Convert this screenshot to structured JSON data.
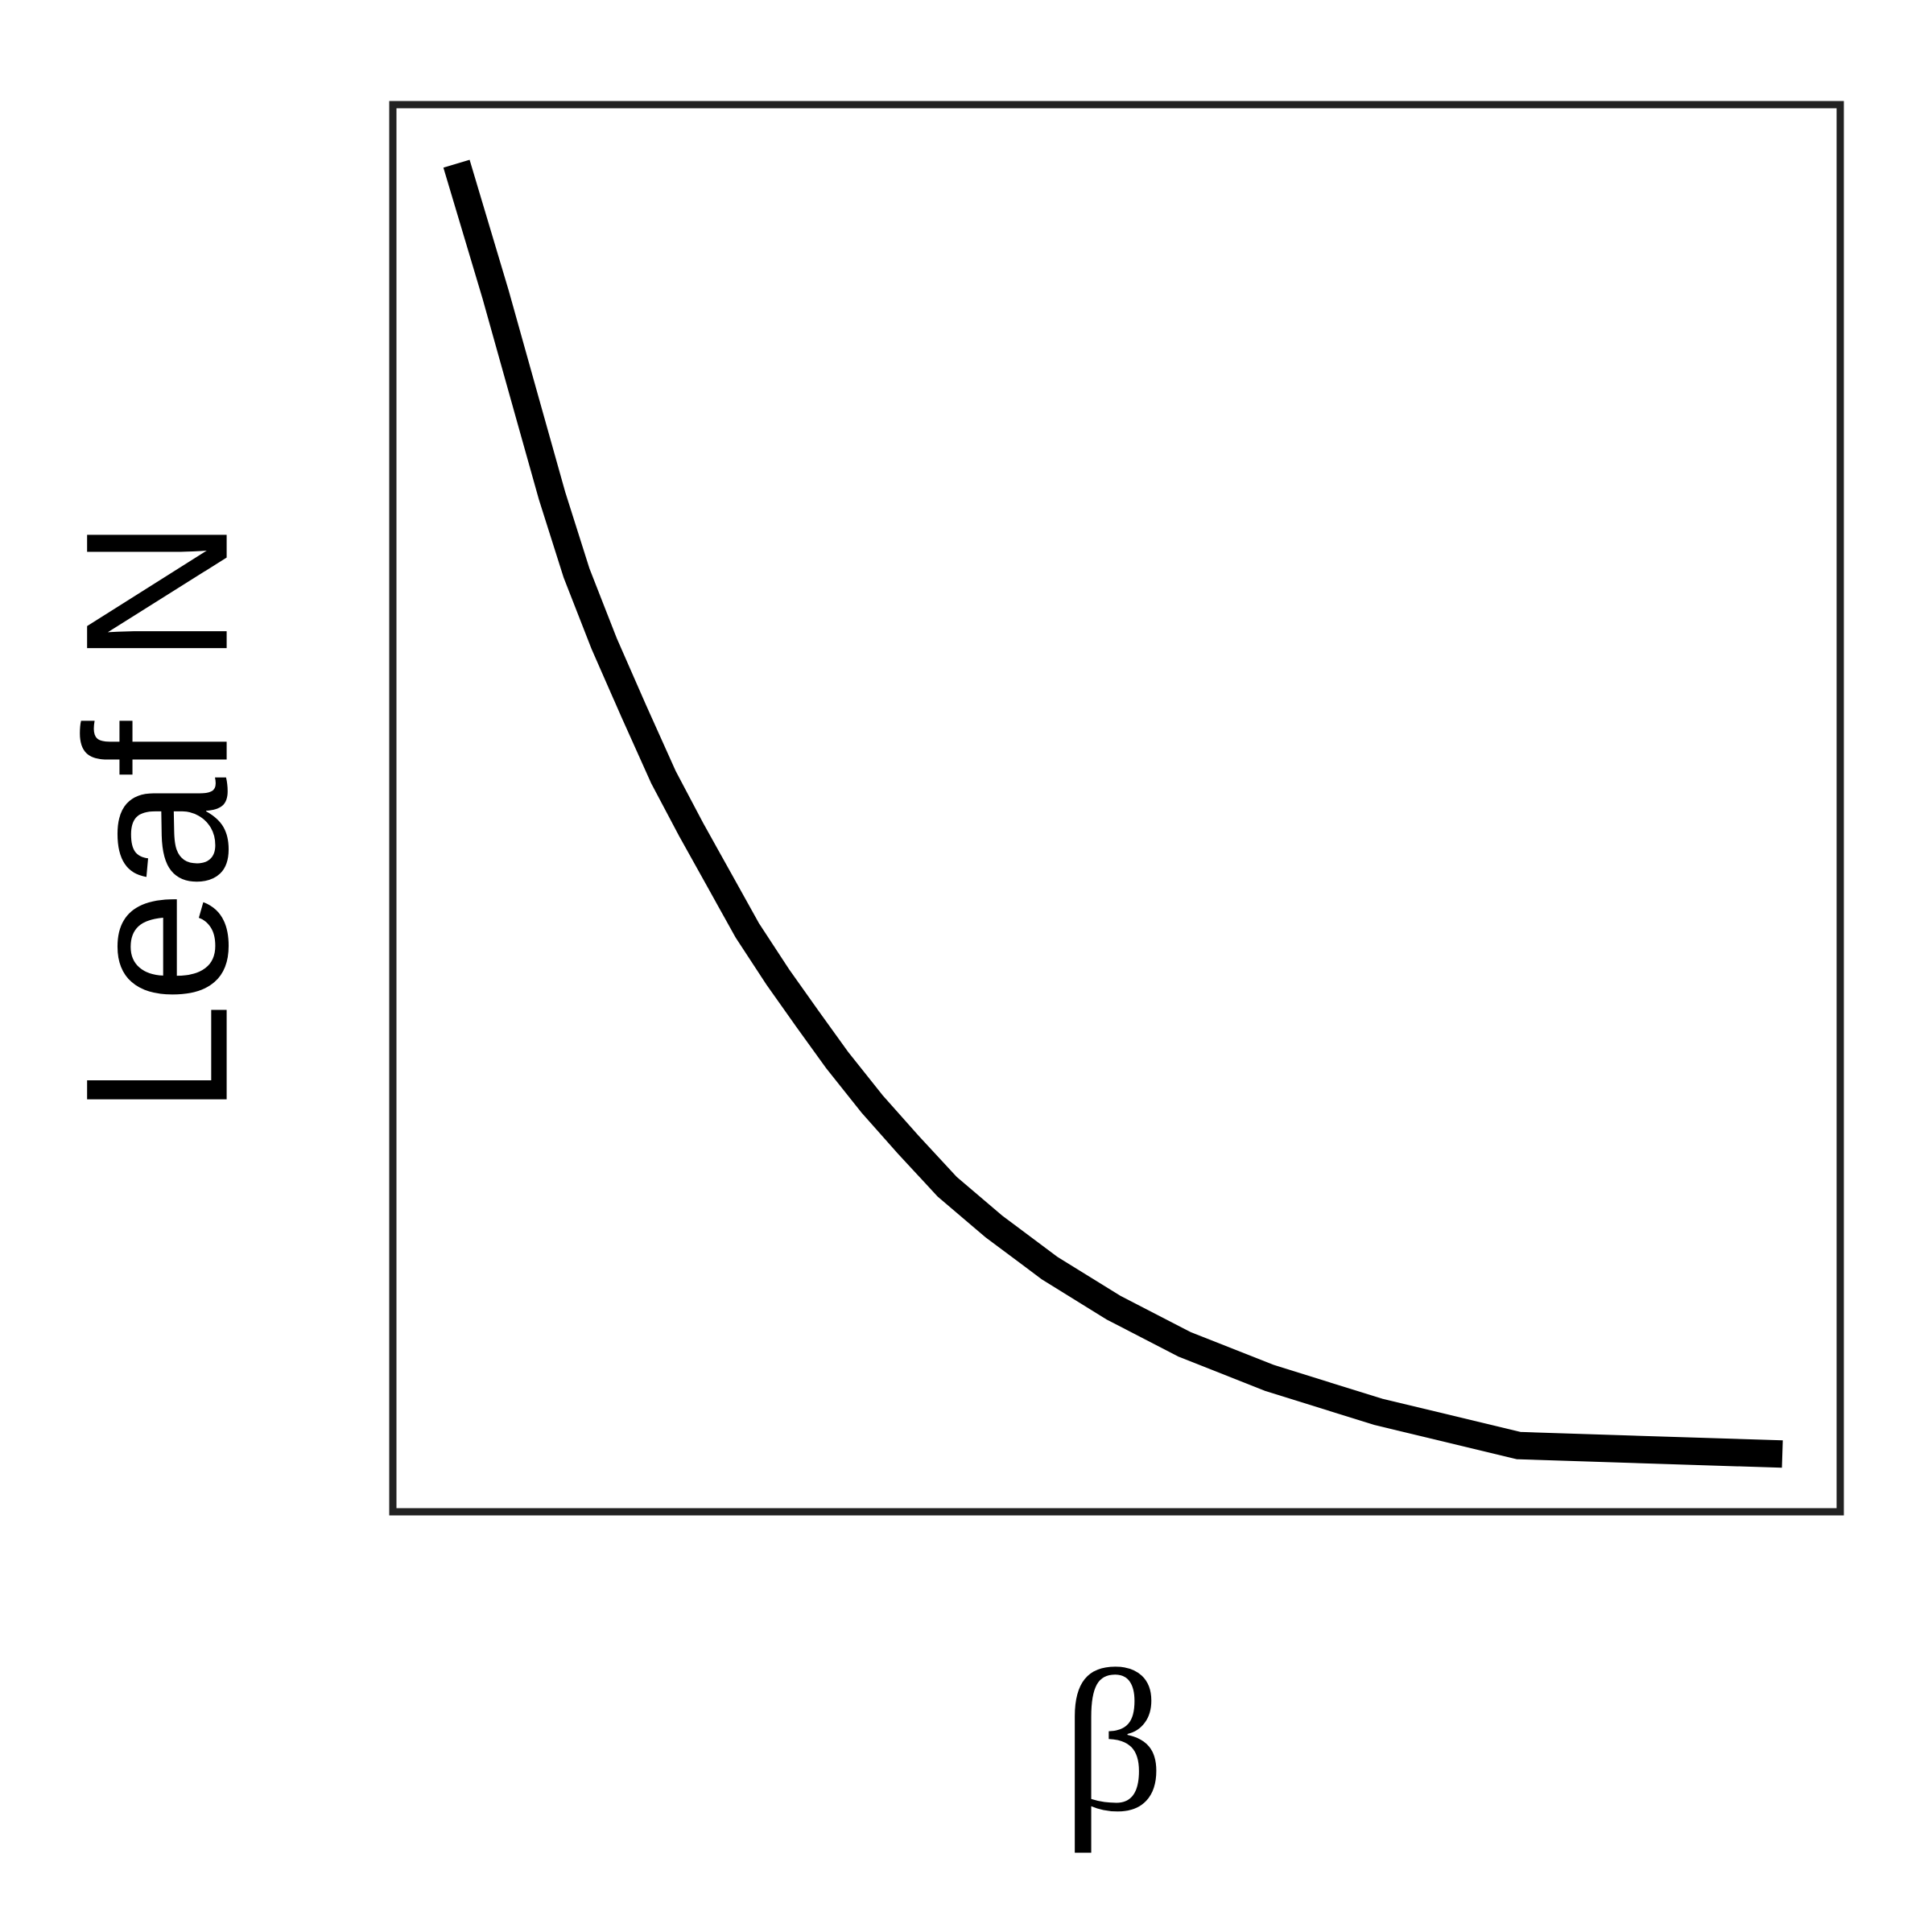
{
  "chart_data": {
    "type": "line",
    "title": "",
    "xlabel": "β",
    "ylabel": "Leaf N",
    "grid": false,
    "legend": "none",
    "x_ticks": [],
    "y_ticks": [],
    "xlim": [
      0,
      1
    ],
    "ylim": [
      0,
      1
    ],
    "series": [
      {
        "color": "#000000",
        "x": [
          0.044,
          0.071,
          0.092,
          0.11,
          0.127,
          0.146,
          0.166,
          0.187,
          0.206,
          0.225,
          0.245,
          0.266,
          0.286,
          0.307,
          0.331,
          0.356,
          0.383,
          0.415,
          0.454,
          0.498,
          0.547,
          0.606,
          0.681,
          0.778,
          0.96
        ],
        "y": [
          0.958,
          0.865,
          0.788,
          0.722,
          0.667,
          0.617,
          0.57,
          0.522,
          0.485,
          0.45,
          0.413,
          0.38,
          0.351,
          0.321,
          0.29,
          0.261,
          0.231,
          0.203,
          0.173,
          0.145,
          0.119,
          0.095,
          0.071,
          0.047,
          0.041
        ]
      }
    ]
  },
  "colors": {
    "frame": "#222222",
    "line": "#000000",
    "background": "#ffffff"
  }
}
